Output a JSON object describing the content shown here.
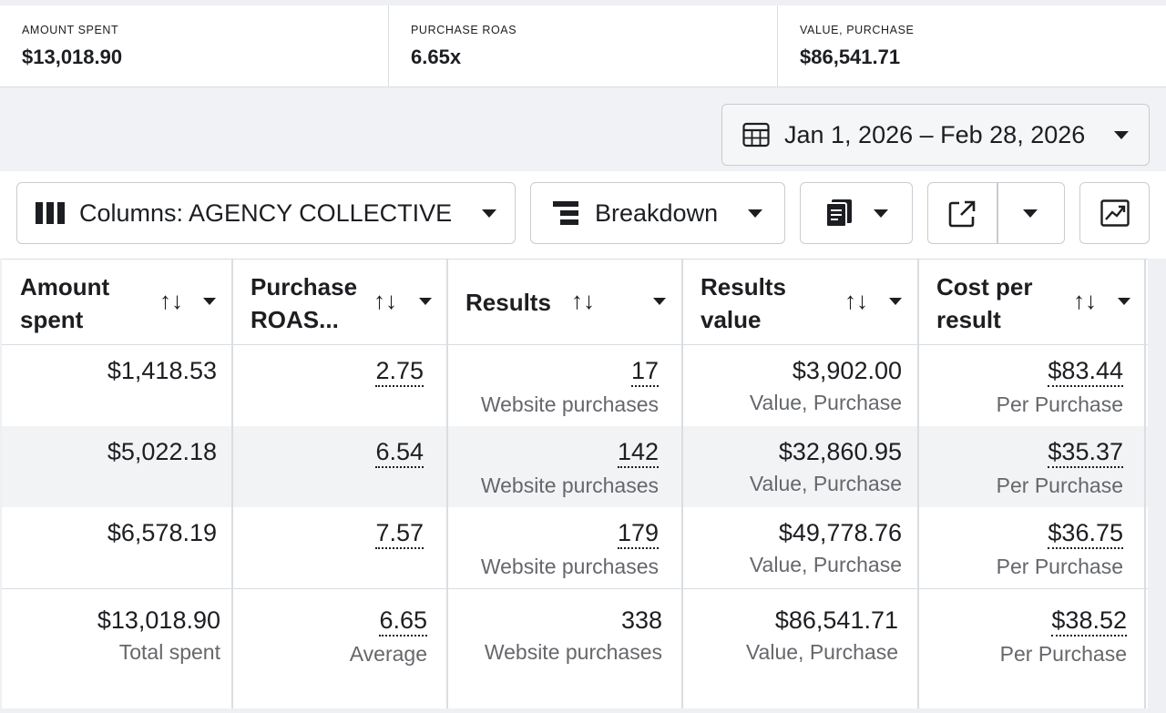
{
  "summary": [
    {
      "label": "AMOUNT SPENT",
      "value": "$13,018.90"
    },
    {
      "label": "PURCHASE ROAS",
      "value": "6.65x"
    },
    {
      "label": "VALUE, PURCHASE",
      "value": "$86,541.71"
    }
  ],
  "date_range": {
    "label": "Jan 1, 2026 – Feb 28, 2026",
    "icon": "calendar-icon"
  },
  "toolbar": {
    "columns_label": "Columns: AGENCY COLLECTIVE",
    "breakdown_label": "Breakdown"
  },
  "table": {
    "headers": [
      {
        "line1": "Amount",
        "line2": "spent"
      },
      {
        "line1": "Purchase",
        "line2": "ROAS..."
      },
      {
        "line1": "Results",
        "line2": ""
      },
      {
        "line1": "Results",
        "line2": "value"
      },
      {
        "line1": "Cost per",
        "line2": "result"
      }
    ],
    "sort_symbol": "↑↓",
    "rows": [
      {
        "spent": "$1,418.53",
        "roas": "2.75",
        "results": "17",
        "results_sub": "Website purchases",
        "value": "$3,902.00",
        "value_sub": "Value, Purchase",
        "cost": "$83.44",
        "cost_sub": "Per Purchase"
      },
      {
        "spent": "$5,022.18",
        "roas": "6.54",
        "results": "142",
        "results_sub": "Website purchases",
        "value": "$32,860.95",
        "value_sub": "Value, Purchase",
        "cost": "$35.37",
        "cost_sub": "Per Purchase"
      },
      {
        "spent": "$6,578.19",
        "roas": "7.57",
        "results": "179",
        "results_sub": "Website purchases",
        "value": "$49,778.76",
        "value_sub": "Value, Purchase",
        "cost": "$36.75",
        "cost_sub": "Per Purchase"
      }
    ],
    "total": {
      "spent": "$13,018.90",
      "spent_sub": "Total spent",
      "roas": "6.65",
      "roas_sub": "Average",
      "results": "338",
      "results_sub": "Website purchases",
      "value": "$86,541.71",
      "value_sub": "Value, Purchase",
      "cost": "$38.52",
      "cost_sub": "Per Purchase"
    }
  }
}
